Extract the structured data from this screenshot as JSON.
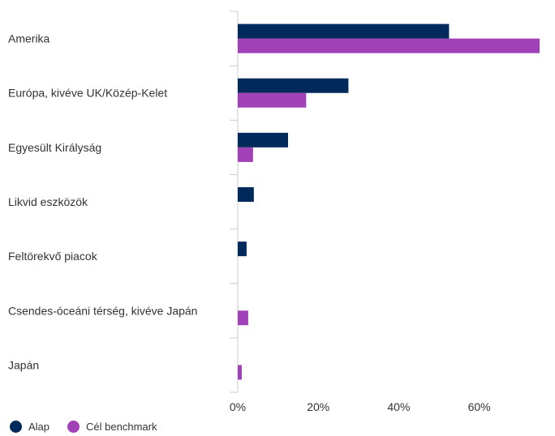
{
  "chart_data": {
    "type": "bar",
    "orientation": "horizontal",
    "categories": [
      "Amerika",
      "Európa, kivéve UK/Közép-Kelet",
      "Egyesült Királyság",
      "Likvid eszközök",
      "Feltörekvő piacok",
      "Csendes-óceáni térség, kivéve Japán",
      "Japán"
    ],
    "series": [
      {
        "name": "Alap",
        "color": "#002a5c",
        "values": [
          52.5,
          27.5,
          12.5,
          4.0,
          2.2,
          0,
          0
        ]
      },
      {
        "name": "Cél benchmark",
        "color": "#a141b8",
        "values": [
          75.0,
          17.0,
          3.8,
          0,
          0,
          2.6,
          1.0
        ]
      }
    ],
    "xticks": [
      0,
      20,
      40,
      60
    ],
    "xtick_labels": [
      "0%",
      "20%",
      "40%",
      "60%"
    ],
    "xlim": [
      0,
      76
    ],
    "grid": false,
    "legend": "bottom-left"
  }
}
